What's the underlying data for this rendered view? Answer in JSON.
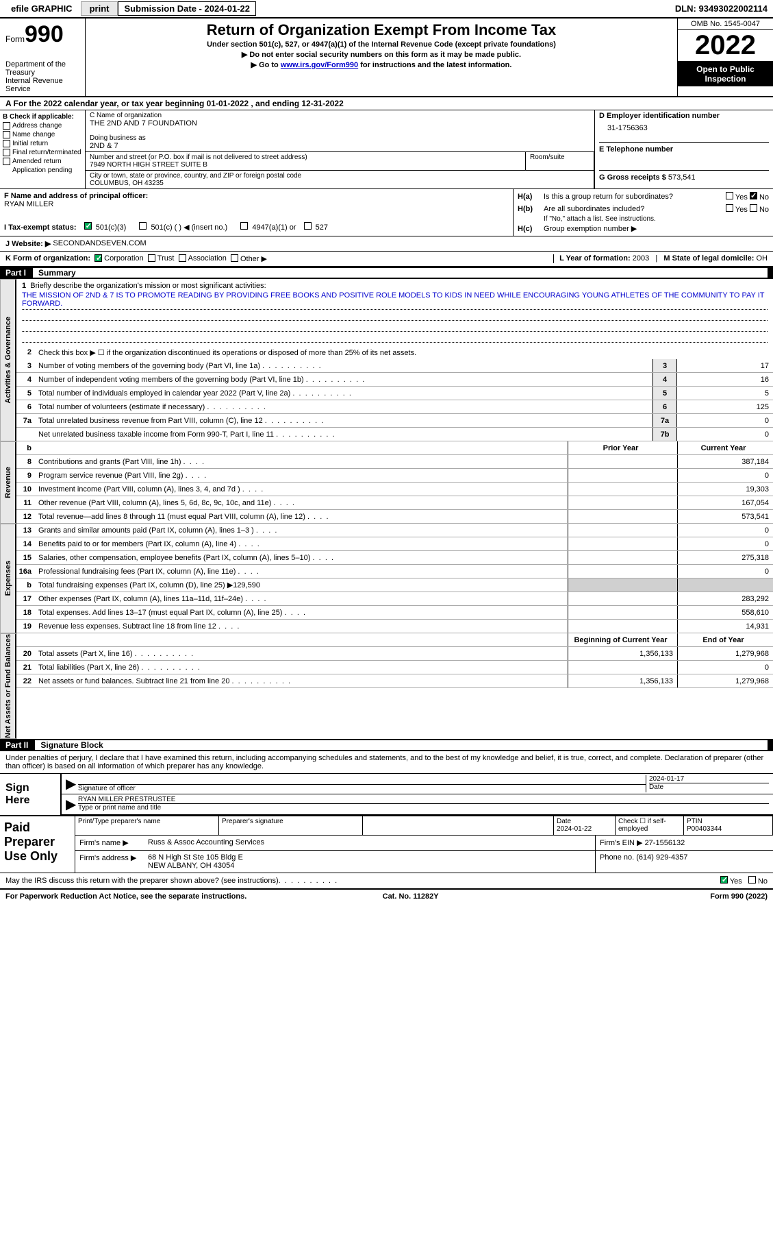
{
  "topbar": {
    "efile": "efile GRAPHIC",
    "print": "print",
    "submission": "Submission Date - 2024-01-22",
    "dln": "DLN: 93493022002114"
  },
  "header": {
    "form": "Form",
    "form_num": "990",
    "title": "Return of Organization Exempt From Income Tax",
    "sub1": "Under section 501(c), 527, or 4947(a)(1) of the Internal Revenue Code (except private foundations)",
    "sub2": "▶ Do not enter social security numbers on this form as it may be made public.",
    "sub3_pre": "▶ Go to ",
    "sub3_link": "www.irs.gov/Form990",
    "sub3_post": " for instructions and the latest information.",
    "dept": "Department of the Treasury",
    "irs": "Internal Revenue Service",
    "omb": "OMB No. 1545-0047",
    "year": "2022",
    "open": "Open to Public Inspection"
  },
  "row_a": "A For the 2022 calendar year, or tax year beginning 01-01-2022    , and ending 12-31-2022",
  "block_b": {
    "label": "B Check if applicable:",
    "opts": [
      "Address change",
      "Name change",
      "Initial return",
      "Final return/terminated",
      "Amended return",
      "Application pending"
    ]
  },
  "block_c": {
    "name_label": "C Name of organization",
    "name": "THE 2ND AND 7 FOUNDATION",
    "dba_label": "Doing business as",
    "dba": "2ND & 7",
    "street_label": "Number and street (or P.O. box if mail is not delivered to street address)",
    "street": "7949 NORTH HIGH STREET SUITE B",
    "room_label": "Room/suite",
    "city_label": "City or town, state or province, country, and ZIP or foreign postal code",
    "city": "COLUMBUS, OH  43235"
  },
  "block_d": {
    "label": "D Employer identification number",
    "ein": "31-1756363"
  },
  "block_e": {
    "label": "E Telephone number"
  },
  "block_g": {
    "label": "G Gross receipts $",
    "value": "573,541"
  },
  "block_f": {
    "label": "F Name and address of principal officer:",
    "name": "RYAN MILLER"
  },
  "block_h": {
    "a": "Is this a group return for subordinates?",
    "b": "Are all subordinates included?",
    "note": "If \"No,\" attach a list. See instructions.",
    "c": "Group exemption number ▶"
  },
  "block_i": {
    "label": "I  Tax-exempt status:",
    "opt1": "501(c)(3)",
    "opt2": "501(c) (  ) ◀ (insert no.)",
    "opt3": "4947(a)(1) or",
    "opt4": "527"
  },
  "block_j": {
    "label": "J  Website: ▶",
    "value": "SECONDANDSEVEN.COM"
  },
  "block_k": {
    "label": "K Form of organization:",
    "corp": "Corporation",
    "trust": "Trust",
    "assoc": "Association",
    "other": "Other ▶"
  },
  "block_l": {
    "label": "L Year of formation:",
    "value": "2003"
  },
  "block_m": {
    "label": "M State of legal domicile:",
    "value": "OH"
  },
  "part1": {
    "header": "Part I",
    "title": "Summary",
    "line1_label": "Briefly describe the organization's mission or most significant activities:",
    "mission": "THE MISSION OF 2ND & 7 IS TO PROMOTE READING BY PROVIDING FREE BOOKS AND POSITIVE ROLE MODELS TO KIDS IN NEED WHILE ENCOURAGING YOUNG ATHLETES OF THE COMMUNITY TO PAY IT FORWARD.",
    "line2": "Check this box ▶ ☐  if the organization discontinued its operations or disposed of more than 25% of its net assets.",
    "lines": [
      {
        "num": "3",
        "text": "Number of voting members of the governing body (Part VI, line 1a)",
        "box": "3",
        "val": "17"
      },
      {
        "num": "4",
        "text": "Number of independent voting members of the governing body (Part VI, line 1b)",
        "box": "4",
        "val": "16"
      },
      {
        "num": "5",
        "text": "Total number of individuals employed in calendar year 2022 (Part V, line 2a)",
        "box": "5",
        "val": "5"
      },
      {
        "num": "6",
        "text": "Total number of volunteers (estimate if necessary)",
        "box": "6",
        "val": "125"
      },
      {
        "num": "7a",
        "text": "Total unrelated business revenue from Part VIII, column (C), line 12",
        "box": "7a",
        "val": "0"
      },
      {
        "num": "",
        "text": "Net unrelated business taxable income from Form 990-T, Part I, line 11",
        "box": "7b",
        "val": "0"
      }
    ],
    "prior_label": "Prior Year",
    "current_label": "Current Year",
    "revenue": [
      {
        "num": "8",
        "text": "Contributions and grants (Part VIII, line 1h)",
        "prior": "",
        "current": "387,184"
      },
      {
        "num": "9",
        "text": "Program service revenue (Part VIII, line 2g)",
        "prior": "",
        "current": "0"
      },
      {
        "num": "10",
        "text": "Investment income (Part VIII, column (A), lines 3, 4, and 7d )",
        "prior": "",
        "current": "19,303"
      },
      {
        "num": "11",
        "text": "Other revenue (Part VIII, column (A), lines 5, 6d, 8c, 9c, 10c, and 11e)",
        "prior": "",
        "current": "167,054"
      },
      {
        "num": "12",
        "text": "Total revenue—add lines 8 through 11 (must equal Part VIII, column (A), line 12)",
        "prior": "",
        "current": "573,541"
      }
    ],
    "expenses": [
      {
        "num": "13",
        "text": "Grants and similar amounts paid (Part IX, column (A), lines 1–3 )",
        "prior": "",
        "current": "0"
      },
      {
        "num": "14",
        "text": "Benefits paid to or for members (Part IX, column (A), line 4)",
        "prior": "",
        "current": "0"
      },
      {
        "num": "15",
        "text": "Salaries, other compensation, employee benefits (Part IX, column (A), lines 5–10)",
        "prior": "",
        "current": "275,318"
      },
      {
        "num": "16a",
        "text": "Professional fundraising fees (Part IX, column (A), line 11e)",
        "prior": "",
        "current": "0"
      },
      {
        "num": "b",
        "text": "Total fundraising expenses (Part IX, column (D), line 25) ▶129,590",
        "grey": true
      },
      {
        "num": "17",
        "text": "Other expenses (Part IX, column (A), lines 11a–11d, 11f–24e)",
        "prior": "",
        "current": "283,292"
      },
      {
        "num": "18",
        "text": "Total expenses. Add lines 13–17 (must equal Part IX, column (A), line 25)",
        "prior": "",
        "current": "558,610"
      },
      {
        "num": "19",
        "text": "Revenue less expenses. Subtract line 18 from line 12",
        "prior": "",
        "current": "14,931"
      }
    ],
    "begin_label": "Beginning of Current Year",
    "end_label": "End of Year",
    "netassets": [
      {
        "num": "20",
        "text": "Total assets (Part X, line 16)",
        "prior": "1,356,133",
        "current": "1,279,968"
      },
      {
        "num": "21",
        "text": "Total liabilities (Part X, line 26)",
        "prior": "",
        "current": "0"
      },
      {
        "num": "22",
        "text": "Net assets or fund balances. Subtract line 21 from line 20",
        "prior": "1,356,133",
        "current": "1,279,968"
      }
    ],
    "side1": "Activities & Governance",
    "side2": "Revenue",
    "side3": "Expenses",
    "side4": "Net Assets or Fund Balances"
  },
  "part2": {
    "header": "Part II",
    "title": "Signature Block",
    "penalties": "Under penalties of perjury, I declare that I have examined this return, including accompanying schedules and statements, and to the best of my knowledge and belief, it is true, correct, and complete. Declaration of preparer (other than officer) is based on all information of which preparer has any knowledge.",
    "sign_here": "Sign Here",
    "sig_officer": "Signature of officer",
    "sig_date": "2024-01-17",
    "sig_date_label": "Date",
    "sig_name": "RYAN MILLER PRESTRUSTEE",
    "sig_name_label": "Type or print name and title",
    "paid": "Paid Preparer Use Only",
    "prep_name_label": "Print/Type preparer's name",
    "prep_sig_label": "Preparer's signature",
    "prep_date_label": "Date",
    "prep_date": "2024-01-22",
    "check_self": "Check ☐ if self-employed",
    "ptin_label": "PTIN",
    "ptin": "P00403344",
    "firm_name_label": "Firm's name    ▶",
    "firm_name": "Russ & Assoc Accounting Services",
    "firm_ein_label": "Firm's EIN ▶",
    "firm_ein": "27-1556132",
    "firm_addr_label": "Firm's address ▶",
    "firm_addr1": "68 N High St Ste 105 Bldg E",
    "firm_addr2": "NEW ALBANY, OH  43054",
    "phone_label": "Phone no.",
    "phone": "(614) 929-4357",
    "discuss": "May the IRS discuss this return with the preparer shown above? (see instructions)"
  },
  "footer": {
    "paperwork": "For Paperwork Reduction Act Notice, see the separate instructions.",
    "cat": "Cat. No. 11282Y",
    "form": "Form 990 (2022)"
  },
  "yn": {
    "yes": "Yes",
    "no": "No"
  }
}
